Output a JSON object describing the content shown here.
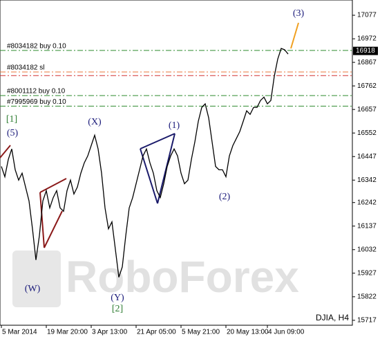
{
  "chart_data": {
    "type": "line",
    "title": "DJIA, H4",
    "watermark": "RoboForex",
    "color": "#000000",
    "categories": [
      "5 Mar 2014",
      null,
      null,
      null,
      null,
      null,
      null,
      null,
      null,
      null,
      null,
      null,
      null,
      "19 Mar 20:00",
      null,
      null,
      null,
      null,
      null,
      null,
      null,
      null,
      null,
      null,
      null,
      null,
      "3 Apr 13:00",
      null,
      null,
      null,
      null,
      null,
      null,
      null,
      null,
      null,
      null,
      null,
      null,
      "21 Apr 05:00",
      null,
      null,
      null,
      null,
      null,
      null,
      null,
      null,
      null,
      null,
      null,
      null,
      "5 May 21:00",
      null,
      null,
      null,
      null,
      null,
      null,
      null,
      null,
      null,
      null,
      null,
      null,
      "20 May 13:00",
      null,
      null,
      null,
      null,
      null,
      null,
      null,
      null,
      null,
      null,
      null,
      "4 Jun 09:00",
      null,
      null,
      null,
      null,
      null,
      null
    ],
    "values": [
      16403,
      16357,
      16434,
      16481,
      16388,
      16342,
      16373,
      16311,
      16249,
      16125,
      15986,
      16094,
      16249,
      16295,
      16218,
      16264,
      16295,
      16218,
      16203,
      16295,
      16342,
      16280,
      16311,
      16373,
      16419,
      16450,
      16496,
      16542,
      16481,
      16373,
      16218,
      16125,
      16156,
      16033,
      15909,
      15955,
      16094,
      16218,
      16264,
      16326,
      16388,
      16450,
      16481,
      16419,
      16373,
      16295,
      16264,
      16326,
      16403,
      16450,
      16481,
      16450,
      16373,
      16326,
      16342,
      16434,
      16512,
      16604,
      16666,
      16682,
      16620,
      16512,
      16403,
      16388,
      16388,
      16357,
      16450,
      16496,
      16527,
      16558,
      16604,
      16651,
      16635,
      16666,
      16666,
      16697,
      16712,
      16682,
      16697,
      16805,
      16882,
      16929,
      16923,
      16904
    ],
    "ylim": [
      15695,
      17145
    ],
    "yticks": [
      17077,
      16972,
      16867,
      16762,
      16657,
      16552,
      16447,
      16342,
      16242,
      16137,
      16032,
      15927,
      15822,
      15717
    ],
    "last_price": 16918,
    "levels": [
      {
        "label": "#8034182 buy 0.10",
        "value": 16920,
        "color": "#2e8b2e"
      },
      {
        "label": "#8034182 sl",
        "value": 16824,
        "color": "#e8743b"
      },
      {
        "value": 16808,
        "color": "#d43030"
      },
      {
        "label": "#8001112 buy 0.10",
        "value": 16719,
        "color": "#2e8b2e"
      },
      {
        "label": "#7995969 buy 0.10",
        "value": 16672,
        "color": "#2e8b2e"
      }
    ],
    "annotations": [
      {
        "text": "[1]",
        "color": "#2e7d32"
      },
      {
        "text": "(5)",
        "color": "#1a1a7a"
      },
      {
        "text": "(W)",
        "color": "#1a1a7a"
      },
      {
        "text": "(X)",
        "color": "#1a1a7a"
      },
      {
        "text": "(Y)",
        "color": "#1a1a7a"
      },
      {
        "text": "[2]",
        "color": "#2e7d32"
      },
      {
        "text": "(1)",
        "color": "#1a1a7a"
      },
      {
        "text": "(2)",
        "color": "#1a1a7a"
      },
      {
        "text": "(3)",
        "color": "#1a1a7a"
      }
    ]
  }
}
